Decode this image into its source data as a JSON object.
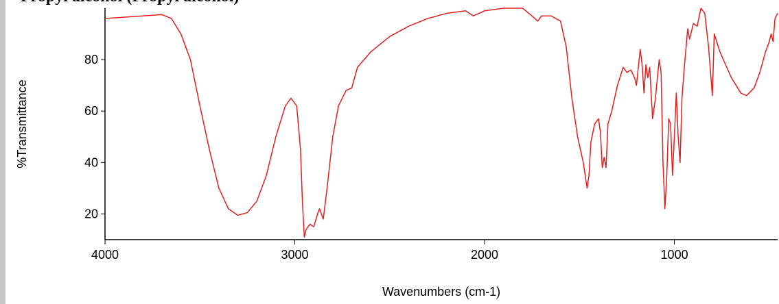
{
  "chart_data": {
    "type": "line",
    "title": "Propyl alcohol (Propyl alcohol)",
    "x_label": "Wavenumbers (cm-1)",
    "y_label": "%Transmittance",
    "xlim": [
      4000,
      456
    ],
    "ylim": [
      10,
      100
    ],
    "xticks": [
      4000,
      3000,
      2000,
      1000
    ],
    "yticks": [
      20,
      40,
      60,
      80
    ],
    "x": [
      4000,
      3800,
      3700,
      3650,
      3600,
      3550,
      3500,
      3450,
      3400,
      3350,
      3300,
      3250,
      3200,
      3150,
      3100,
      3050,
      3020,
      2990,
      2970,
      2960,
      2950,
      2940,
      2920,
      2900,
      2880,
      2870,
      2850,
      2830,
      2800,
      2770,
      2730,
      2700,
      2670,
      2600,
      2500,
      2400,
      2300,
      2200,
      2100,
      2060,
      2000,
      1900,
      1800,
      1750,
      1720,
      1700,
      1650,
      1600,
      1570,
      1540,
      1510,
      1480,
      1460,
      1450,
      1440,
      1420,
      1400,
      1390,
      1380,
      1370,
      1360,
      1350,
      1330,
      1300,
      1270,
      1250,
      1230,
      1210,
      1200,
      1180,
      1170,
      1160,
      1150,
      1140,
      1130,
      1115,
      1100,
      1080,
      1070,
      1060,
      1050,
      1040,
      1030,
      1020,
      1010,
      1000,
      990,
      980,
      970,
      960,
      950,
      930,
      920,
      900,
      880,
      860,
      840,
      820,
      800,
      790,
      760,
      730,
      700,
      650,
      620,
      580,
      550,
      520,
      500,
      490,
      480,
      470,
      456
    ],
    "series": [
      {
        "name": "%Transmittance",
        "color": "#e02020",
        "values": [
          96,
          97,
          97.5,
          96,
          90,
          80,
          62,
          45,
          30,
          22,
          19.5,
          20.5,
          25,
          35,
          50,
          62,
          65,
          62,
          45,
          25,
          11,
          14,
          16,
          15,
          20,
          22,
          18,
          30,
          50,
          62,
          68,
          69,
          77,
          83,
          89,
          93,
          96,
          98,
          99,
          97,
          99,
          100,
          100,
          97,
          95,
          97,
          97,
          95,
          85,
          65,
          50,
          40,
          30,
          35,
          48,
          55,
          57,
          52,
          38,
          42,
          38,
          55,
          60,
          70,
          77,
          75,
          76,
          73,
          70,
          84,
          78,
          67,
          78,
          73,
          77,
          57,
          65,
          80,
          75,
          40,
          22,
          35,
          57,
          55,
          35,
          50,
          67,
          50,
          40,
          65,
          75,
          92,
          88,
          94,
          93,
          100,
          98,
          85,
          66,
          90,
          83,
          78,
          73,
          67,
          66,
          69,
          75,
          83,
          87,
          90,
          87,
          96,
          98
        ]
      }
    ]
  }
}
